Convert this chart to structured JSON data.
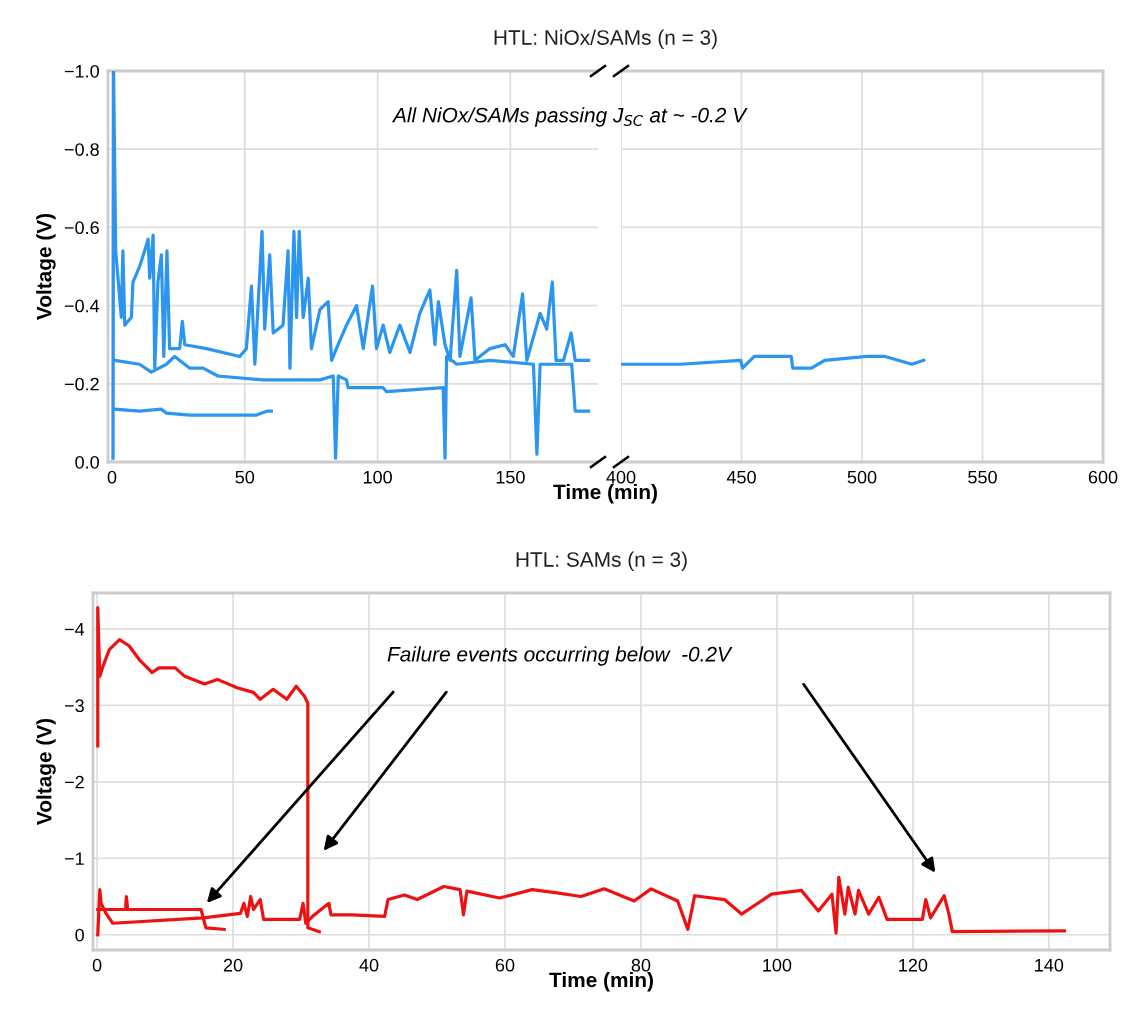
{
  "chart_data": [
    {
      "type": "line",
      "title": "HTL: NiOx/SAMs (n = 3)",
      "xlabel": "Time (min)",
      "ylabel": "Voltage (V)",
      "annotations": [
        "All NiOx/SAMs passing J$_{SC}$ at ~ -0.2 V"
      ],
      "xlim": [
        -1.5,
        183
      ],
      "xticks": [
        0,
        50,
        100,
        150
      ],
      "ylim": [
        0,
        -1.0
      ],
      "yticks": [
        {
          "value": -1.0,
          "label": "−1.0"
        },
        {
          "value": -0.8,
          "label": "−0.8"
        },
        {
          "value": -0.6,
          "label": "−0.6"
        },
        {
          "value": -0.4,
          "label": "−0.4"
        },
        {
          "value": -0.2,
          "label": "−0.2"
        },
        {
          "value": 0,
          "label": "0.0"
        }
      ],
      "grid": true,
      "line_style": "solid",
      "marker": "none",
      "series": [
        {
          "color": "#2b95f0",
          "x": [
            0.4,
            0.6,
            1.4,
            3.5,
            4.1,
            4.8,
            7.3,
            7.9,
            10.4,
            12.3,
            13.6,
            14.2,
            15.5,
            16.1,
            17.3,
            18.6,
            19.5,
            20.7,
            21.7,
            25.5,
            26.5,
            27.4,
            35.6,
            48.1,
            50.6,
            52.5,
            53.8,
            56.5,
            57.5,
            59.4,
            60.7,
            64.4,
            66.3,
            67,
            68.5,
            69.5,
            70.5,
            72,
            73.9,
            75.1,
            78.3,
            81.4,
            82.7,
            84.5,
            88.3,
            92.1,
            94.6,
            98.1,
            99.6,
            102.1,
            104.6,
            108.4,
            112.2,
            115.9,
            119.7,
            121.6,
            122.9,
            125.4,
            127.3,
            129.8,
            131,
            135.2,
            136.7,
            142.3,
            148,
            151.1,
            154.6,
            156.2,
            161.2,
            163.7,
            165.8,
            167.2,
            170,
            172.9,
            174.4,
            179.4
          ],
          "values": [
            -0.01,
            -1.0,
            -0.54,
            -0.37,
            -0.54,
            -0.35,
            -0.37,
            -0.46,
            -0.5,
            -0.54,
            -0.57,
            -0.47,
            -0.58,
            -0.24,
            -0.46,
            -0.53,
            -0.27,
            -0.54,
            -0.29,
            -0.29,
            -0.36,
            -0.3,
            -0.29,
            -0.27,
            -0.29,
            -0.45,
            -0.25,
            -0.59,
            -0.34,
            -0.53,
            -0.33,
            -0.35,
            -0.54,
            -0.24,
            -0.59,
            -0.37,
            -0.59,
            -0.37,
            -0.47,
            -0.29,
            -0.39,
            -0.41,
            -0.26,
            -0.29,
            -0.35,
            -0.4,
            -0.29,
            -0.45,
            -0.29,
            -0.35,
            -0.28,
            -0.35,
            -0.28,
            -0.38,
            -0.44,
            -0.3,
            -0.41,
            -0.3,
            -0.26,
            -0.49,
            -0.27,
            -0.42,
            -0.26,
            -0.29,
            -0.3,
            -0.27,
            -0.43,
            -0.26,
            -0.38,
            -0.34,
            -0.46,
            -0.26,
            -0.26,
            -0.33,
            -0.26,
            -0.26
          ]
        },
        {
          "color": "#2b95f0",
          "x": [
            1,
            10.4,
            14.8,
            20.5,
            23.6,
            29.3,
            34.3,
            39.9,
            56.9,
            58.2,
            65.7,
            72,
            78.3,
            83.3,
            84.2,
            85.2,
            88.3,
            88.9,
            102.1,
            103.4,
            124.7,
            125.4,
            126,
            129.8,
            142.3,
            158.7,
            160,
            161.2,
            173.1,
            174.4,
            179.4
          ],
          "values": [
            -0.26,
            -0.25,
            -0.23,
            -0.25,
            -0.27,
            -0.24,
            -0.24,
            -0.22,
            -0.21,
            -0.21,
            -0.21,
            -0.21,
            -0.21,
            -0.22,
            -0.01,
            -0.22,
            -0.21,
            -0.19,
            -0.19,
            -0.18,
            -0.19,
            -0.01,
            -0.27,
            -0.25,
            -0.26,
            -0.25,
            -0.02,
            -0.25,
            -0.25,
            -0.13,
            -0.13
          ]
        },
        {
          "color": "#2b95f0",
          "x": [
            1,
            10.4,
            18.6,
            20.5,
            29.3,
            54.4,
            58.2,
            60
          ],
          "values": [
            -0.135,
            -0.13,
            -0.135,
            -0.125,
            -0.12,
            -0.12,
            -0.13,
            -0.13
          ]
        }
      ]
    },
    {
      "type": "line",
      "xlim": [
        400,
        600
      ],
      "xticks": [
        400,
        450,
        500,
        550,
        600
      ],
      "ylim": [
        0,
        -1.0
      ],
      "yticks": [
        -1.0,
        -0.8,
        -0.6,
        -0.4,
        -0.2,
        0
      ],
      "tick_labels": "x",
      "grid": true,
      "line_style": "solid",
      "marker": "none",
      "series": [
        {
          "color": "#2b95f0",
          "x": [
            400,
            424.7,
            449.7,
            450.4,
            455.3,
            470.6,
            471.3,
            479,
            484.5,
            502,
            509.6,
            520.7,
            525.6
          ],
          "values": [
            -0.25,
            -0.25,
            -0.26,
            -0.24,
            -0.27,
            -0.27,
            -0.24,
            -0.24,
            -0.26,
            -0.27,
            -0.27,
            -0.25,
            -0.26
          ]
        }
      ]
    },
    {
      "type": "line",
      "title": "HTL: SAMs (n = 3)",
      "xlabel": "Time (min)",
      "ylabel": "Voltage (V)",
      "annotations": [
        "Failure events occurring below  -0.2V"
      ],
      "xlim": [
        -0.6,
        149
      ],
      "xticks": [
        0,
        20,
        40,
        60,
        80,
        100,
        120,
        140
      ],
      "ylim": [
        0.2,
        -4.47
      ],
      "yticks": [
        {
          "value": -4,
          "label": "−4"
        },
        {
          "value": -3,
          "label": "−3"
        },
        {
          "value": -2,
          "label": "−2"
        },
        {
          "value": -1,
          "label": "−1"
        },
        {
          "value": 0,
          "label": "0"
        }
      ],
      "grid": true,
      "line_style": "solid",
      "marker": "none",
      "series": [
        {
          "color": "#ee1111",
          "x": [
            0.1,
            0.1,
            0.4,
            0.9,
            1.8,
            3.3,
            4.7,
            6.2,
            8.1,
            9.1,
            11.5,
            12.9,
            15.8,
            17.7,
            20.6,
            23,
            24,
            25.9,
            27.9,
            29.3,
            30.5,
            31,
            31,
            32.7
          ],
          "values": [
            -2.47,
            -4.28,
            -3.38,
            -3.52,
            -3.73,
            -3.86,
            -3.78,
            -3.6,
            -3.43,
            -3.49,
            -3.49,
            -3.38,
            -3.28,
            -3.34,
            -3.23,
            -3.17,
            -3.08,
            -3.21,
            -3.08,
            -3.25,
            -3.12,
            -3.03,
            -0.09,
            -0.04
          ]
        },
        {
          "color": "#ee1111",
          "x": [
            0.1,
            0.4,
            0.6,
            1.3,
            2.3,
            15.6,
            21.1,
            21.6,
            22.1,
            22.6,
            23,
            24,
            24.5,
            29.8,
            30.3,
            30.7,
            31.7,
            34.1,
            34.4,
            37.5,
            42.3,
            42.8,
            45.2,
            47.1,
            51,
            53.4,
            53.9,
            54.4,
            59.2,
            64,
            67.4,
            71.2,
            74.6,
            79,
            81.5,
            85.4,
            86.9,
            87.9,
            92.3,
            94.8,
            99.2,
            103.6,
            106.1,
            108.1,
            108.7,
            109.1,
            110,
            110.5,
            111.5,
            112,
            113.5,
            115,
            116.2,
            121.4,
            121.9,
            122.6,
            124.6,
            125.3,
            125.8,
            142.3
          ],
          "values": [
            0,
            -0.59,
            -0.41,
            -0.28,
            -0.15,
            -0.22,
            -0.28,
            -0.41,
            -0.24,
            -0.5,
            -0.33,
            -0.46,
            -0.2,
            -0.2,
            -0.41,
            -0.15,
            -0.24,
            -0.41,
            -0.26,
            -0.26,
            -0.24,
            -0.46,
            -0.52,
            -0.46,
            -0.63,
            -0.59,
            -0.26,
            -0.57,
            -0.48,
            -0.59,
            -0.55,
            -0.5,
            -0.6,
            -0.44,
            -0.6,
            -0.44,
            -0.07,
            -0.51,
            -0.46,
            -0.27,
            -0.53,
            -0.58,
            -0.31,
            -0.53,
            -0.02,
            -0.75,
            -0.27,
            -0.62,
            -0.27,
            -0.58,
            -0.27,
            -0.49,
            -0.2,
            -0.2,
            -0.46,
            -0.22,
            -0.51,
            -0.27,
            -0.04,
            -0.05
          ]
        },
        {
          "color": "#ee1111",
          "x": [
            0.1,
            4.2,
            4.3,
            4.5,
            15.3,
            16,
            18.7
          ],
          "values": [
            -0.33,
            -0.33,
            -0.5,
            -0.33,
            -0.33,
            -0.09,
            -0.07
          ]
        }
      ]
    }
  ]
}
